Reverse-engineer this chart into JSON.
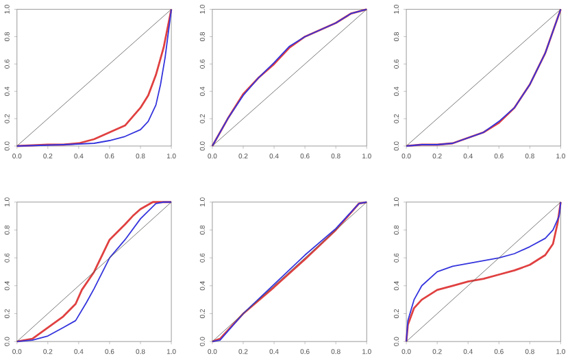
{
  "chart_data": [
    {
      "type": "line",
      "xlim": [
        0,
        1
      ],
      "ylim": [
        0,
        1
      ],
      "xticks": [
        {
          "value": 0,
          "label": "0.0"
        },
        {
          "value": 0.2,
          "label": "0.2"
        },
        {
          "value": 0.4,
          "label": "0.4"
        },
        {
          "value": 0.6,
          "label": "0.6"
        },
        {
          "value": 0.8,
          "label": "0.8"
        },
        {
          "value": 1,
          "label": "1.0"
        }
      ],
      "yticks": [
        {
          "value": 0,
          "label": "0.0"
        },
        {
          "value": 0.2,
          "label": "0.2"
        },
        {
          "value": 0.4,
          "label": "0.4"
        },
        {
          "value": 0.6,
          "label": "0.6"
        },
        {
          "value": 0.8,
          "label": "0.8"
        },
        {
          "value": 1,
          "label": "1.0"
        }
      ],
      "grid": false,
      "series": [
        {
          "color": "#555555",
          "x": [
            0,
            1
          ],
          "values": [
            0,
            1
          ]
        },
        {
          "color": "#3333dd",
          "x": [
            0,
            0.3,
            0.5,
            0.6,
            0.7,
            0.8,
            0.85,
            0.9,
            0.93,
            0.96,
            1
          ],
          "values": [
            0,
            0.01,
            0.02,
            0.04,
            0.07,
            0.12,
            0.18,
            0.3,
            0.45,
            0.65,
            1
          ]
        },
        {
          "color": "#e04040",
          "x": [
            0,
            0.2,
            0.3,
            0.4,
            0.5,
            0.6,
            0.7,
            0.8,
            0.85,
            0.9,
            0.95,
            1
          ],
          "values": [
            0,
            0.01,
            0.01,
            0.02,
            0.05,
            0.1,
            0.15,
            0.28,
            0.37,
            0.52,
            0.72,
            1
          ]
        }
      ]
    },
    {
      "type": "line",
      "xlim": [
        0,
        1
      ],
      "ylim": [
        0,
        1
      ],
      "xticks": [
        {
          "value": 0,
          "label": "0.0"
        },
        {
          "value": 0.2,
          "label": "0.2"
        },
        {
          "value": 0.4,
          "label": "0.4"
        },
        {
          "value": 0.6,
          "label": "0.6"
        },
        {
          "value": 0.8,
          "label": "0.8"
        },
        {
          "value": 1,
          "label": "1.0"
        }
      ],
      "yticks": [
        {
          "value": 0,
          "label": "0.0"
        },
        {
          "value": 0.2,
          "label": "0.2"
        },
        {
          "value": 0.4,
          "label": "0.4"
        },
        {
          "value": 0.6,
          "label": "0.6"
        },
        {
          "value": 0.8,
          "label": "0.8"
        },
        {
          "value": 1,
          "label": "1.0"
        }
      ],
      "grid": false,
      "series": [
        {
          "color": "#555555",
          "x": [
            0,
            1
          ],
          "values": [
            0,
            1
          ]
        },
        {
          "color": "#3333dd",
          "x": [
            0,
            0.05,
            0.1,
            0.2,
            0.3,
            0.4,
            0.5,
            0.6,
            0.7,
            0.8,
            0.9,
            1
          ],
          "values": [
            0,
            0.1,
            0.2,
            0.37,
            0.5,
            0.61,
            0.73,
            0.8,
            0.85,
            0.9,
            0.97,
            1
          ]
        },
        {
          "color": "#e04040",
          "x": [
            0,
            0.05,
            0.1,
            0.2,
            0.3,
            0.4,
            0.5,
            0.6,
            0.7,
            0.8,
            0.9,
            1
          ],
          "values": [
            0,
            0.1,
            0.2,
            0.38,
            0.5,
            0.6,
            0.72,
            0.8,
            0.85,
            0.9,
            0.97,
            1
          ]
        }
      ]
    },
    {
      "type": "line",
      "xlim": [
        0,
        1
      ],
      "ylim": [
        0,
        1
      ],
      "xticks": [
        {
          "value": 0,
          "label": "0.0"
        },
        {
          "value": 0.2,
          "label": "0.2"
        },
        {
          "value": 0.4,
          "label": "0.4"
        },
        {
          "value": 0.6,
          "label": "0.6"
        },
        {
          "value": 0.8,
          "label": "0.8"
        },
        {
          "value": 1,
          "label": "1.0"
        }
      ],
      "yticks": [
        {
          "value": 0,
          "label": "0.0"
        },
        {
          "value": 0.2,
          "label": "0.2"
        },
        {
          "value": 0.4,
          "label": "0.4"
        },
        {
          "value": 0.6,
          "label": "0.6"
        },
        {
          "value": 0.8,
          "label": "0.8"
        },
        {
          "value": 1,
          "label": "1.0"
        }
      ],
      "grid": false,
      "series": [
        {
          "color": "#555555",
          "x": [
            0,
            1
          ],
          "values": [
            0,
            1
          ]
        },
        {
          "color": "#3333dd",
          "x": [
            0,
            0.1,
            0.2,
            0.3,
            0.4,
            0.5,
            0.6,
            0.7,
            0.8,
            0.9,
            1
          ],
          "values": [
            0,
            0.01,
            0.01,
            0.02,
            0.06,
            0.1,
            0.18,
            0.28,
            0.45,
            0.68,
            1
          ]
        },
        {
          "color": "#e04040",
          "x": [
            0,
            0.1,
            0.2,
            0.3,
            0.4,
            0.5,
            0.6,
            0.7,
            0.8,
            0.9,
            1
          ],
          "values": [
            0,
            0.01,
            0.01,
            0.02,
            0.06,
            0.1,
            0.17,
            0.28,
            0.45,
            0.68,
            1
          ]
        }
      ]
    },
    {
      "type": "line",
      "xlim": [
        0,
        1
      ],
      "ylim": [
        0,
        1
      ],
      "xticks": [
        {
          "value": 0,
          "label": "0.0"
        },
        {
          "value": 0.2,
          "label": "0.2"
        },
        {
          "value": 0.4,
          "label": "0.4"
        },
        {
          "value": 0.6,
          "label": "0.6"
        },
        {
          "value": 0.8,
          "label": "0.8"
        },
        {
          "value": 1,
          "label": "1.0"
        }
      ],
      "yticks": [
        {
          "value": 0,
          "label": "0.0"
        },
        {
          "value": 0.2,
          "label": "0.2"
        },
        {
          "value": 0.4,
          "label": "0.4"
        },
        {
          "value": 0.6,
          "label": "0.6"
        },
        {
          "value": 0.8,
          "label": "0.8"
        },
        {
          "value": 1,
          "label": "1.0"
        }
      ],
      "grid": false,
      "series": [
        {
          "color": "#555555",
          "x": [
            0,
            1
          ],
          "values": [
            0,
            1
          ]
        },
        {
          "color": "#3333dd",
          "x": [
            0,
            0.1,
            0.2,
            0.3,
            0.38,
            0.45,
            0.5,
            0.6,
            0.7,
            0.8,
            0.9,
            0.95,
            1
          ],
          "values": [
            0,
            0.01,
            0.04,
            0.1,
            0.15,
            0.28,
            0.38,
            0.6,
            0.73,
            0.88,
            0.99,
            1,
            1
          ]
        },
        {
          "color": "#e04040",
          "x": [
            0,
            0.1,
            0.2,
            0.3,
            0.38,
            0.42,
            0.5,
            0.6,
            0.7,
            0.75,
            0.8,
            0.88,
            1
          ],
          "values": [
            0,
            0.02,
            0.1,
            0.18,
            0.27,
            0.37,
            0.5,
            0.73,
            0.84,
            0.9,
            0.95,
            1,
            1
          ]
        }
      ]
    },
    {
      "type": "line",
      "xlim": [
        0,
        1
      ],
      "ylim": [
        0,
        1
      ],
      "xticks": [
        {
          "value": 0,
          "label": "0.0"
        },
        {
          "value": 0.2,
          "label": "0.2"
        },
        {
          "value": 0.4,
          "label": "0.4"
        },
        {
          "value": 0.6,
          "label": "0.6"
        },
        {
          "value": 0.8,
          "label": "0.8"
        },
        {
          "value": 1,
          "label": "1.0"
        }
      ],
      "yticks": [
        {
          "value": 0,
          "label": "0.0"
        },
        {
          "value": 0.2,
          "label": "0.2"
        },
        {
          "value": 0.4,
          "label": "0.4"
        },
        {
          "value": 0.6,
          "label": "0.6"
        },
        {
          "value": 0.8,
          "label": "0.8"
        },
        {
          "value": 1,
          "label": "1.0"
        }
      ],
      "grid": false,
      "series": [
        {
          "color": "#555555",
          "x": [
            0,
            1
          ],
          "values": [
            0,
            1
          ]
        },
        {
          "color": "#3333dd",
          "x": [
            0,
            0.05,
            0.2,
            0.4,
            0.6,
            0.8,
            0.95,
            1
          ],
          "values": [
            0,
            0.01,
            0.2,
            0.41,
            0.62,
            0.81,
            0.99,
            1
          ]
        },
        {
          "color": "#e04040",
          "x": [
            0,
            0.05,
            0.2,
            0.4,
            0.6,
            0.8,
            0.95,
            1
          ],
          "values": [
            0,
            0.02,
            0.2,
            0.39,
            0.59,
            0.8,
            0.99,
            1
          ]
        }
      ]
    },
    {
      "type": "line",
      "xlim": [
        0,
        1
      ],
      "ylim": [
        0,
        1
      ],
      "xticks": [
        {
          "value": 0,
          "label": "0.0"
        },
        {
          "value": 0.2,
          "label": "0.2"
        },
        {
          "value": 0.4,
          "label": "0.4"
        },
        {
          "value": 0.6,
          "label": "0.6"
        },
        {
          "value": 0.8,
          "label": "0.8"
        },
        {
          "value": 1,
          "label": "1.0"
        }
      ],
      "yticks": [
        {
          "value": 0,
          "label": "0.0"
        },
        {
          "value": 0.2,
          "label": "0.2"
        },
        {
          "value": 0.4,
          "label": "0.4"
        },
        {
          "value": 0.6,
          "label": "0.6"
        },
        {
          "value": 0.8,
          "label": "0.8"
        },
        {
          "value": 1,
          "label": "1.0"
        }
      ],
      "grid": false,
      "series": [
        {
          "color": "#555555",
          "x": [
            0,
            1
          ],
          "values": [
            0,
            1
          ]
        },
        {
          "color": "#3333dd",
          "x": [
            0,
            0.01,
            0.05,
            0.1,
            0.2,
            0.3,
            0.4,
            0.5,
            0.6,
            0.7,
            0.8,
            0.9,
            0.95,
            0.99,
            1
          ],
          "values": [
            0,
            0.15,
            0.3,
            0.4,
            0.5,
            0.54,
            0.56,
            0.58,
            0.6,
            0.63,
            0.68,
            0.74,
            0.8,
            0.9,
            1
          ]
        },
        {
          "color": "#e04040",
          "x": [
            0,
            0.01,
            0.05,
            0.1,
            0.2,
            0.3,
            0.4,
            0.5,
            0.6,
            0.7,
            0.8,
            0.9,
            0.95,
            0.98,
            1
          ],
          "values": [
            0,
            0.12,
            0.24,
            0.3,
            0.37,
            0.4,
            0.43,
            0.45,
            0.48,
            0.51,
            0.55,
            0.62,
            0.7,
            0.85,
            1
          ]
        }
      ]
    }
  ]
}
